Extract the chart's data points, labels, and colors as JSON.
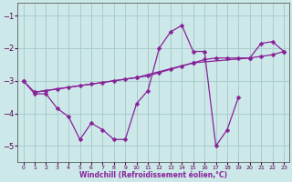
{
  "background_color": "#cde8e8",
  "grid_color": "#aacccc",
  "line_color": "#882299",
  "xlabel": "Windchill (Refroidissement éolien,°C)",
  "xlim": [
    -0.5,
    23.5
  ],
  "ylim": [
    -5.5,
    -0.6
  ],
  "xticks": [
    0,
    1,
    2,
    3,
    4,
    5,
    6,
    7,
    8,
    9,
    10,
    11,
    12,
    13,
    14,
    15,
    16,
    17,
    18,
    19,
    20,
    21,
    22,
    23
  ],
  "yticks": [
    -5,
    -4,
    -3,
    -2,
    -1
  ],
  "series1_x": [
    0,
    1,
    2,
    3,
    4,
    5,
    6,
    7,
    8,
    9,
    10,
    11,
    12,
    13,
    14,
    15,
    16,
    17,
    18,
    19
  ],
  "series1_y": [
    -3.0,
    -3.4,
    -3.4,
    -3.85,
    -4.1,
    -4.8,
    -4.3,
    -4.5,
    -4.8,
    -4.8,
    -3.7,
    -3.3,
    -2.0,
    -1.5,
    -1.3,
    -2.1,
    -2.1,
    -5.0,
    -4.5,
    -3.5
  ],
  "series2_x": [
    0,
    1,
    2,
    3,
    4,
    5,
    6,
    7,
    8,
    9,
    10,
    11,
    12,
    13,
    14,
    15,
    16,
    17,
    18,
    19,
    20,
    21,
    22,
    23
  ],
  "series2_y": [
    -3.0,
    -3.35,
    -3.3,
    -3.25,
    -3.2,
    -3.15,
    -3.1,
    -3.05,
    -3.0,
    -2.95,
    -2.9,
    -2.85,
    -2.75,
    -2.65,
    -2.55,
    -2.45,
    -2.35,
    -2.3,
    -2.3,
    -2.3,
    -2.3,
    -2.25,
    -2.2,
    -2.1
  ],
  "series3_x": [
    1,
    10,
    15,
    20,
    21,
    22,
    23
  ],
  "series3_y": [
    -3.35,
    -2.9,
    -2.45,
    -2.3,
    -1.85,
    -1.8,
    -2.1
  ]
}
